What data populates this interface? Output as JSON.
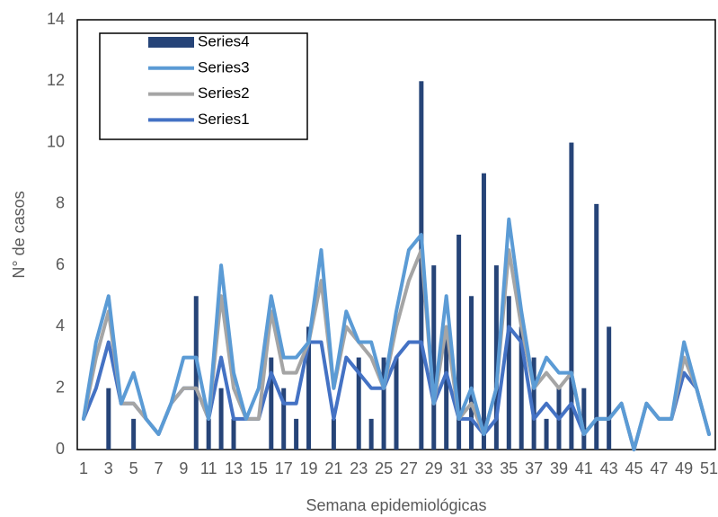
{
  "chart_data": {
    "type": "combo",
    "y_label": "N° de casos",
    "x_label": "Semana epidemiológicas",
    "categories": [
      1,
      null,
      3,
      null,
      5,
      null,
      7,
      null,
      9,
      null,
      11,
      null,
      13,
      null,
      15,
      null,
      17,
      null,
      19,
      null,
      21,
      null,
      23,
      null,
      25,
      null,
      27,
      null,
      29,
      null,
      31,
      null,
      33,
      null,
      35,
      null,
      37,
      null,
      39,
      null,
      41,
      null,
      43,
      null,
      45,
      null,
      47,
      null,
      49,
      null,
      51
    ],
    "ylim": [
      0,
      14
    ],
    "yticks": [
      0,
      2,
      4,
      6,
      8,
      10,
      12,
      14
    ],
    "grid": false,
    "legend": "top-left",
    "series": [
      {
        "name": "Series4",
        "type": "bar",
        "color": "#264478",
        "values": [
          0,
          0,
          2,
          0,
          1,
          0,
          0,
          0,
          0,
          5,
          1,
          2,
          1,
          0,
          0,
          3,
          2,
          1,
          4,
          0,
          1,
          0,
          3,
          1,
          3,
          3,
          0,
          12,
          6,
          4,
          7,
          5,
          9,
          6,
          5,
          4,
          3,
          1,
          2,
          10,
          2,
          8,
          4,
          0,
          0,
          0,
          0,
          0,
          0,
          0,
          0
        ]
      },
      {
        "name": "Series3",
        "type": "line",
        "color": "#5b9bd5",
        "values": [
          1,
          3.5,
          5,
          1.5,
          2.5,
          1,
          0.5,
          1.5,
          3,
          3,
          1,
          6,
          2.5,
          1,
          2,
          5,
          3,
          3,
          3.5,
          6.5,
          2,
          4.5,
          3.5,
          3.5,
          2,
          4.5,
          6.5,
          7,
          1.5,
          5,
          1,
          2,
          0.5,
          2,
          7.5,
          4.5,
          2,
          3,
          2.5,
          2.5,
          0.5,
          1,
          1,
          1.5,
          0,
          1.5,
          1,
          1,
          3.5,
          2,
          0.5
        ]
      },
      {
        "name": "Series2",
        "type": "line",
        "color": "#a5a5a5",
        "values": [
          1,
          3,
          4.5,
          1.5,
          1.5,
          1,
          0.5,
          1.5,
          2,
          2,
          1,
          5,
          2,
          1,
          1,
          4.5,
          2.5,
          2.5,
          3.5,
          5.5,
          2,
          4,
          3.5,
          3,
          2,
          4,
          5.5,
          6.5,
          1.5,
          4,
          1,
          1.5,
          0.5,
          2,
          6.5,
          4,
          2,
          2.5,
          2,
          2.5,
          0.5,
          1,
          1,
          1.5,
          0,
          1.5,
          1,
          1,
          3,
          2,
          0.5
        ]
      },
      {
        "name": "Series1",
        "type": "line",
        "color": "#4472c4",
        "values": [
          1,
          2,
          3.5,
          1.5,
          1.5,
          1,
          0.5,
          1.5,
          2,
          2,
          1,
          3,
          1,
          1,
          1,
          2.5,
          1.5,
          1.5,
          3.5,
          3.5,
          1,
          3,
          2.5,
          2,
          2,
          3,
          3.5,
          3.5,
          1.5,
          2.5,
          1,
          1,
          0.5,
          1,
          4,
          3.5,
          1,
          1.5,
          1,
          1.5,
          0.5,
          1,
          1,
          1.5,
          0,
          1.5,
          1,
          1,
          2.5,
          2,
          0.5
        ]
      }
    ]
  }
}
